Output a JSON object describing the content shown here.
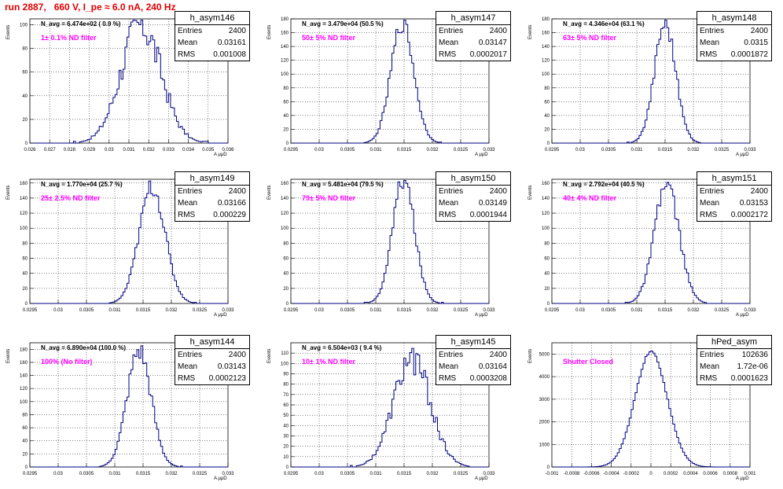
{
  "title": "run 2887,   660 V, I_pe ≈ 6.0 nA, 240 Hz",
  "axis_x_label": "A μμD",
  "axis_y_label": "Events",
  "stats_labels": {
    "entries": "Entries",
    "mean": "Mean",
    "rms": "RMS"
  },
  "chart_data": [
    {
      "type": "bar",
      "name": "h_asym146",
      "navg": "N_avg = 6.474e+02 ( 0.9 %)",
      "filter": "1± 0.1% ND filter",
      "entries": "2400",
      "mean": "0.03161",
      "rms": "0.001008",
      "mu": 0.03161,
      "sigma": 0.001008,
      "peak": 100,
      "xlim": [
        0.026,
        0.036
      ],
      "ylim": [
        0,
        105
      ],
      "xticks": [
        "0.026",
        "0.027",
        "0.028",
        "0.029",
        "0.03",
        "0.031",
        "0.032",
        "0.033",
        "0.034",
        "0.035",
        "0.036"
      ],
      "yticks": [
        0,
        20,
        40,
        60,
        80,
        100
      ],
      "nbins": 100,
      "noise": 0.18
    },
    {
      "type": "bar",
      "name": "h_asym147",
      "navg": "N_avg = 3.479e+04 (50.5 %)",
      "filter": "50± 5% ND filter",
      "entries": "2400",
      "mean": "0.03147",
      "rms": "0.0002017",
      "mu": 0.03147,
      "sigma": 0.0002017,
      "peak": 175,
      "xlim": [
        0.0295,
        0.033
      ],
      "ylim": [
        0,
        180
      ],
      "xticks": [
        "0.0295",
        "0.03",
        "0.0305",
        "0.031",
        "0.0315",
        "0.032",
        "0.0325",
        "0.033"
      ],
      "yticks": [
        0,
        20,
        40,
        60,
        80,
        100,
        120,
        140,
        160,
        180
      ],
      "nbins": 100,
      "noise": 0.08
    },
    {
      "type": "bar",
      "name": "h_asym148",
      "navg": "N_avg = 4.346e+04 (63.1 %)",
      "filter": "63± 5% ND filter",
      "entries": "2400",
      "mean": "0.0315",
      "rms": "0.0001872",
      "mu": 0.0315,
      "sigma": 0.0001872,
      "peak": 175,
      "xlim": [
        0.0295,
        0.033
      ],
      "ylim": [
        0,
        180
      ],
      "xticks": [
        "0.0295",
        "0.03",
        "0.0305",
        "0.031",
        "0.0315",
        "0.032",
        "0.0325",
        "0.033"
      ],
      "yticks": [
        0,
        20,
        40,
        60,
        80,
        100,
        120,
        140,
        160,
        180
      ],
      "nbins": 100,
      "noise": 0.08
    },
    {
      "type": "bar",
      "name": "h_asym149",
      "navg": "N_avg = 1.770e+04 (25.7 %)",
      "filter": "25± 2.5% ND filter",
      "entries": "2400",
      "mean": "0.03166",
      "rms": "0.000229",
      "mu": 0.03166,
      "sigma": 0.000229,
      "peak": 155,
      "xlim": [
        0.0295,
        0.033
      ],
      "ylim": [
        0,
        165
      ],
      "xticks": [
        "0.0295",
        "0.03",
        "0.0305",
        "0.031",
        "0.0315",
        "0.032",
        "0.0325",
        "0.033"
      ],
      "yticks": [
        0,
        20,
        40,
        60,
        80,
        100,
        120,
        140,
        160
      ],
      "nbins": 100,
      "noise": 0.08
    },
    {
      "type": "bar",
      "name": "h_asym150",
      "navg": "N_avg = 5.481e+04 (79.5 %)",
      "filter": "79± 5% ND filter",
      "entries": "2400",
      "mean": "0.03149",
      "rms": "0.0001944",
      "mu": 0.03149,
      "sigma": 0.0001944,
      "peak": 165,
      "xlim": [
        0.0295,
        0.033
      ],
      "ylim": [
        0,
        165
      ],
      "xticks": [
        "0.0295",
        "0.03",
        "0.0305",
        "0.031",
        "0.0315",
        "0.032",
        "0.0325",
        "0.033"
      ],
      "yticks": [
        0,
        20,
        40,
        60,
        80,
        100,
        120,
        140,
        160
      ],
      "nbins": 100,
      "noise": 0.08
    },
    {
      "type": "bar",
      "name": "h_asym151",
      "navg": "N_avg = 2.792e+04 (40.5 %)",
      "filter": "40± 4% ND filter",
      "entries": "2400",
      "mean": "0.03153",
      "rms": "0.0002172",
      "mu": 0.03153,
      "sigma": 0.0002172,
      "peak": 158,
      "xlim": [
        0.0295,
        0.033
      ],
      "ylim": [
        0,
        165
      ],
      "xticks": [
        "0.0295",
        "0.03",
        "0.0305",
        "0.031",
        "0.0315",
        "0.032",
        "0.0325",
        "0.033"
      ],
      "yticks": [
        0,
        20,
        40,
        60,
        80,
        100,
        120,
        140,
        160
      ],
      "nbins": 100,
      "noise": 0.08
    },
    {
      "type": "bar",
      "name": "h_asym144",
      "navg": "N_avg = 6.890e+04 (100.0 %)",
      "filter": "100% (No filter)",
      "entries": "2400",
      "mean": "0.03143",
      "rms": "0.0002123",
      "mu": 0.03143,
      "sigma": 0.0002123,
      "peak": 178,
      "xlim": [
        0.0295,
        0.033
      ],
      "ylim": [
        0,
        190
      ],
      "xticks": [
        "0.0295",
        "0.03",
        "0.0305",
        "0.031",
        "0.0315",
        "0.032",
        "0.0325",
        "0.033"
      ],
      "yticks": [
        0,
        20,
        40,
        60,
        80,
        100,
        120,
        140,
        160,
        180
      ],
      "nbins": 100,
      "noise": 0.1
    },
    {
      "type": "bar",
      "name": "h_asym145",
      "navg": "N_avg = 6.504e+03 ( 9.4 %)",
      "filter": "10± 1% ND filter",
      "entries": "2400",
      "mean": "0.03164",
      "rms": "0.0003208",
      "mu": 0.03164,
      "sigma": 0.0003208,
      "peak": 105,
      "xlim": [
        0.0295,
        0.033
      ],
      "ylim": [
        0,
        120
      ],
      "xticks": [
        "0.0295",
        "0.03",
        "0.0305",
        "0.031",
        "0.0315",
        "0.032",
        "0.0325",
        "0.033"
      ],
      "yticks": [
        0,
        10,
        20,
        30,
        40,
        50,
        60,
        70,
        80,
        90,
        100,
        110
      ],
      "nbins": 100,
      "noise": 0.15
    },
    {
      "type": "bar",
      "name": "hPed_asym",
      "navg": "",
      "filter": "Shutter Closed",
      "entries": "102636",
      "mean": "1.72e-06",
      "rms": "0.0001623",
      "mu": 1.7e-06,
      "sigma": 0.0001623,
      "peak": 5100,
      "xlim": [
        -0.001,
        0.001
      ],
      "ylim": [
        0,
        5500
      ],
      "xticks": [
        "-0.001",
        "-0.0008",
        "-0.0006",
        "-0.0004",
        "-0.0002",
        "0",
        "0.0002",
        "0.0004",
        "0.0006",
        "0.0008",
        "0.001"
      ],
      "yticks": [
        0,
        1000,
        2000,
        3000,
        4000,
        5000
      ],
      "nbins": 100,
      "noise": 0.01
    }
  ]
}
